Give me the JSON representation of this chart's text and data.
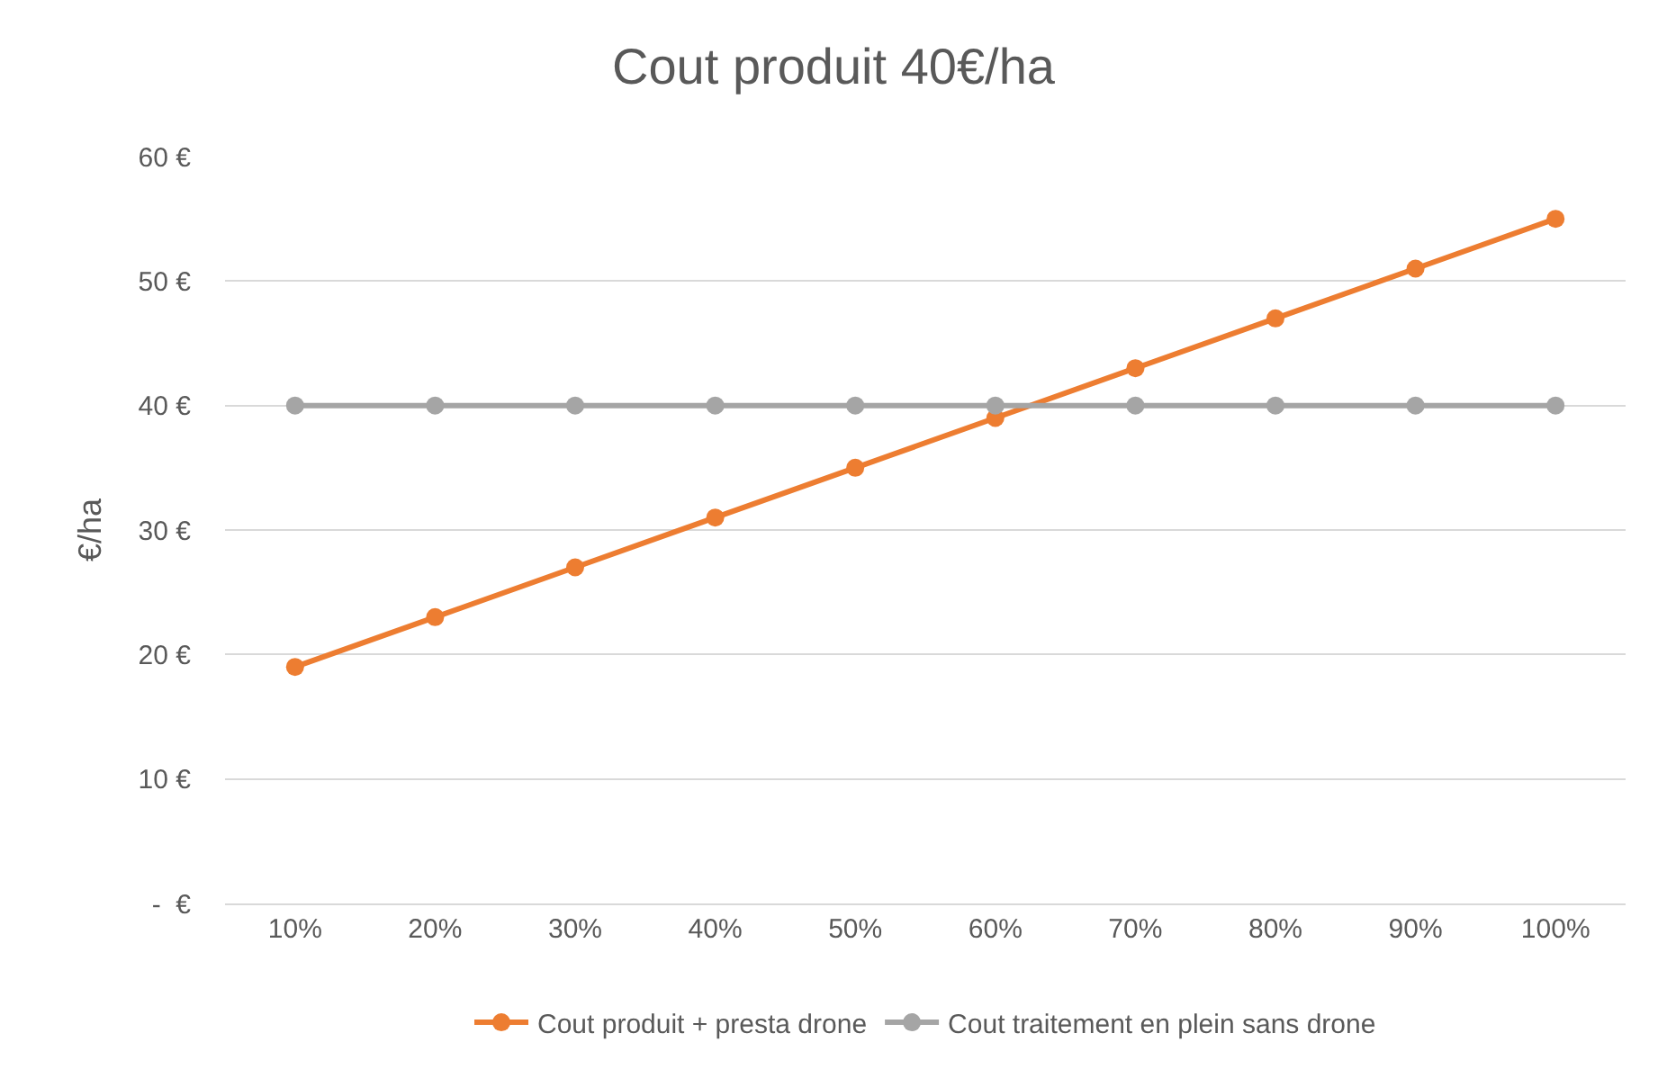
{
  "chart_data": {
    "type": "line",
    "title": "Cout produit 40€/ha",
    "ylabel": "€/ha",
    "categories": [
      "10%",
      "20%",
      "30%",
      "40%",
      "50%",
      "60%",
      "70%",
      "80%",
      "90%",
      "100%"
    ],
    "series": [
      {
        "name": "Cout produit + presta drone",
        "color": "#ed7d31",
        "values": [
          19,
          23,
          27,
          31,
          35,
          39,
          43,
          47,
          51,
          55
        ]
      },
      {
        "name": "Cout traitement en plein sans drone",
        "color": "#a5a5a5",
        "values": [
          40,
          40,
          40,
          40,
          40,
          40,
          40,
          40,
          40,
          40
        ]
      }
    ],
    "ylim": [
      0,
      60
    ],
    "yticks": [
      {
        "value": 0,
        "label": "-  €"
      },
      {
        "value": 10,
        "label": "10 €"
      },
      {
        "value": 20,
        "label": "20 €"
      },
      {
        "value": 30,
        "label": "30 €"
      },
      {
        "value": 40,
        "label": "40 €"
      },
      {
        "value": 50,
        "label": "50 €"
      },
      {
        "value": 60,
        "label": "60 €"
      }
    ],
    "grid": "y",
    "legend": "bottom",
    "marker": "circle",
    "line_style": "solid"
  }
}
